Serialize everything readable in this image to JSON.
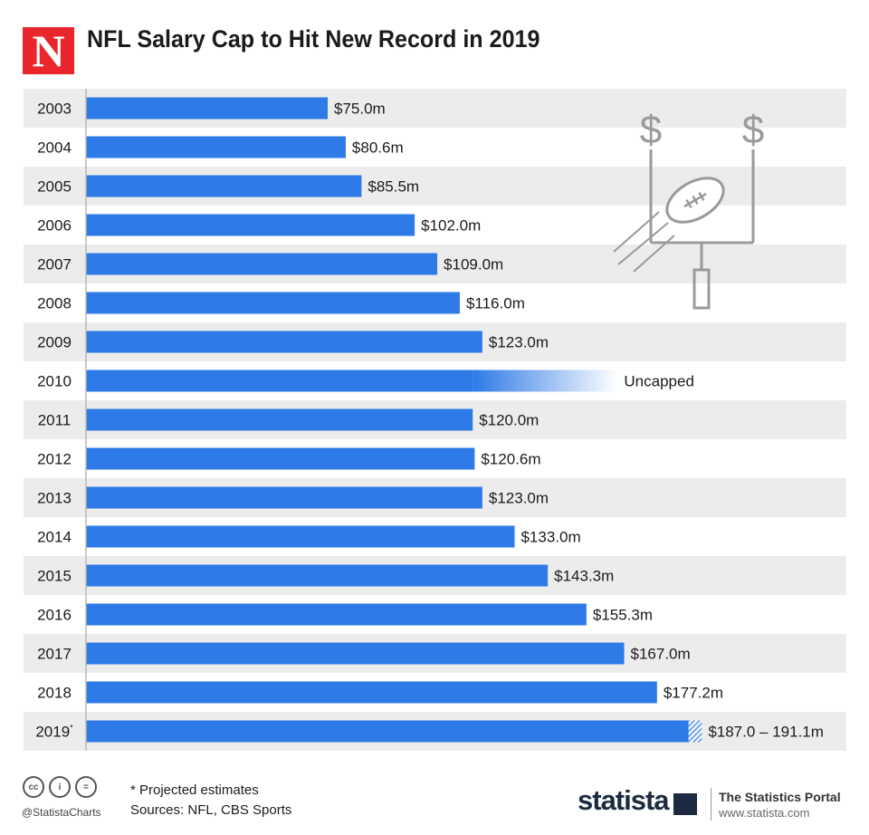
{
  "header": {
    "logo_letter": "N",
    "title": "NFL Salary Cap to Hit New Record in 2019"
  },
  "chart_data": {
    "type": "bar",
    "orientation": "horizontal",
    "title": "NFL Salary Cap to Hit New Record in 2019",
    "xlabel": "",
    "ylabel": "",
    "unit": "million USD",
    "xlim": [
      0,
      195
    ],
    "categories": [
      "2003",
      "2004",
      "2005",
      "2006",
      "2007",
      "2008",
      "2009",
      "2010",
      "2011",
      "2012",
      "2013",
      "2014",
      "2015",
      "2016",
      "2017",
      "2018",
      "2019"
    ],
    "category_marks": [
      "",
      "",
      "",
      "",
      "",
      "",
      "",
      "",
      "",
      "",
      "",
      "",
      "",
      "",
      "",
      "",
      "*"
    ],
    "values": [
      75.0,
      80.6,
      85.5,
      102.0,
      109.0,
      116.0,
      123.0,
      null,
      120.0,
      120.6,
      123.0,
      133.0,
      143.3,
      155.3,
      167.0,
      177.2,
      187.0
    ],
    "range_max": [
      null,
      null,
      null,
      null,
      null,
      null,
      null,
      null,
      null,
      null,
      null,
      null,
      null,
      null,
      null,
      null,
      191.1
    ],
    "labels": [
      "$75.0m",
      "$80.6m",
      "$85.5m",
      "$102.0m",
      "$109.0m",
      "$116.0m",
      "$123.0m",
      "Uncapped",
      "$120.0m",
      "$120.6m",
      "$123.0m",
      "$133.0m",
      "$143.3m",
      "$155.3m",
      "$167.0m",
      "$177.2m",
      "$187.0 – 191.1m"
    ],
    "uncapped_fade_value": 165,
    "uncapped_solid_value": 120,
    "bar_color": "#2e7ae6",
    "row_alt_color": "#ececec"
  },
  "footer": {
    "note": "* Projected estimates",
    "sources": "Sources: NFL, CBS Sports",
    "cc_icons": [
      "cc-icon",
      "by-icon",
      "nd-icon"
    ],
    "cc_glyphs": [
      "cc",
      "i",
      "="
    ],
    "handle": "@StatistaCharts",
    "brand": "statista",
    "portal": "The Statistics Portal",
    "portal_url": "www.statista.com"
  },
  "colors": {
    "logo_red": "#e8262b",
    "brand_navy": "#1c2b3f",
    "icon_gray": "#999999"
  }
}
